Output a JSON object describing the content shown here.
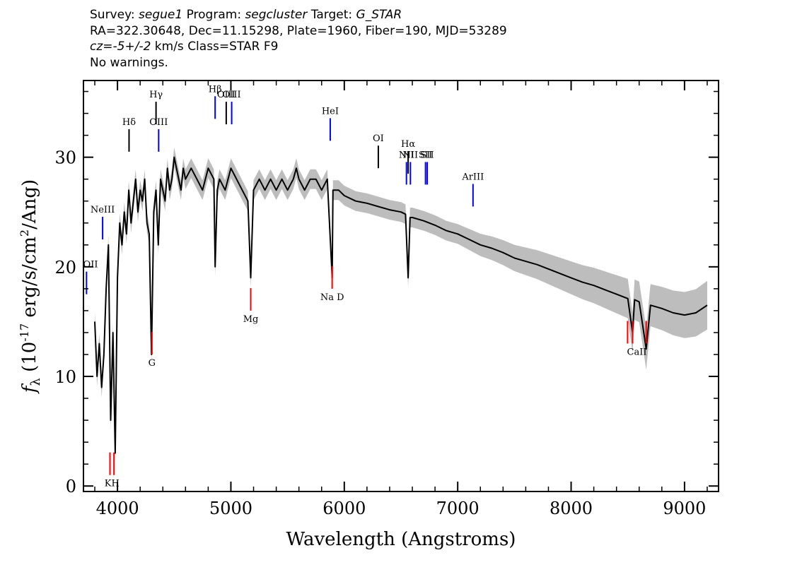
{
  "header": {
    "line1": {
      "survey_label": "Survey: ",
      "survey": "segue1",
      "program_label": " Program: ",
      "program": "segcluster",
      "target_label": " Target: ",
      "target": "G_STAR"
    },
    "line2": "RA=322.30648, Dec=11.15298, Plate=1960, Fiber=190, MJD=53289",
    "line3": {
      "cz_label": "cz=",
      "cz_value": "-5+/-2",
      "cz_rest": " km/s Class=STAR F9"
    },
    "line4": "No warnings."
  },
  "colors": {
    "flux": "#000000",
    "error_band": "#bdbdbd",
    "emission": "#0000ff",
    "absorption": "#ff0000",
    "sky_lines": "#000000"
  },
  "chart_data": {
    "type": "line",
    "xlabel": "Wavelength (Angstroms)",
    "ylabel_parts": {
      "f": "f",
      "sub": "λ",
      "mid": " (10",
      "exp": "-17",
      "rest": " erg/s/cm",
      "exp2": "2",
      "end": "/Ang)"
    },
    "xlim": [
      3700,
      9300
    ],
    "ylim": [
      -0.5,
      37
    ],
    "xticks": [
      4000,
      5000,
      6000,
      7000,
      8000,
      9000
    ],
    "yticks": [
      0,
      10,
      20,
      30
    ],
    "grid": false,
    "series": [
      {
        "values_note": "",
        "x": [
          3800,
          3820,
          3840,
          3860,
          3880,
          3900,
          3920,
          3940,
          3960,
          3980,
          4000,
          4020,
          4040,
          4060,
          4080,
          4100,
          4120,
          4140,
          4160,
          4180,
          4200,
          4220,
          4240,
          4260,
          4280,
          4300,
          4320,
          4340,
          4360,
          4380,
          4400,
          4420,
          4440,
          4460,
          4480,
          4500,
          4520,
          4540,
          4560,
          4580,
          4600,
          4650,
          4700,
          4750,
          4800,
          4850,
          4861,
          4880,
          4900,
          4950,
          5000,
          5050,
          5100,
          5150,
          5175,
          5200,
          5250,
          5300,
          5350,
          5400,
          5450,
          5500,
          5550,
          5577,
          5600,
          5650,
          5700,
          5750,
          5800,
          5850,
          5893,
          5900,
          5950,
          6000,
          6100,
          6200,
          6300,
          6400,
          6500,
          6540,
          6563,
          6580,
          6600,
          6700,
          6800,
          6900,
          7000,
          7100,
          7200,
          7300,
          7400,
          7500,
          7600,
          7700,
          7800,
          7900,
          8000,
          8100,
          8200,
          8300,
          8400,
          8500,
          8542,
          8560,
          8600,
          8662,
          8700,
          8800,
          8900,
          9000,
          9100,
          9200
        ],
        "y": [
          15,
          10,
          13,
          9,
          12,
          18,
          22,
          6,
          14,
          3,
          19,
          24,
          22,
          25,
          23,
          27,
          24,
          26,
          28,
          25,
          27,
          26,
          28,
          24,
          23,
          12,
          25,
          27,
          22,
          28,
          27,
          26,
          29,
          27,
          28,
          30,
          29,
          28,
          27,
          29,
          28,
          29,
          28,
          27,
          29,
          28,
          20,
          27,
          28,
          27,
          29,
          28,
          27,
          26,
          19,
          27,
          28,
          27,
          28,
          27,
          28,
          27,
          28,
          29,
          28,
          27,
          28,
          28,
          27,
          28,
          19,
          27,
          27,
          26.5,
          26,
          25.8,
          25.5,
          25.2,
          25,
          24.8,
          19,
          24.5,
          24.5,
          24.2,
          23.8,
          23.3,
          23,
          22.5,
          22,
          21.7,
          21.3,
          20.8,
          20.5,
          20.2,
          19.8,
          19.4,
          19,
          18.6,
          18.3,
          17.9,
          17.5,
          17.1,
          14,
          17,
          16.8,
          12.5,
          16.5,
          16.2,
          15.8,
          15.6,
          15.8,
          16.5
        ]
      }
    ],
    "emission_lines": [
      {
        "label": "OII",
        "x": 3727,
        "y": 17.5,
        "color": "#0000ff"
      },
      {
        "label": "NeIII",
        "x": 3869,
        "y": 22.5,
        "color": "#0000ff"
      },
      {
        "label": "Hδ",
        "x": 4102,
        "y": 30.5,
        "color": "#000000"
      },
      {
        "label": "Hγ",
        "x": 4340,
        "y": 33,
        "color": "#000000"
      },
      {
        "label": "OIII",
        "x": 4363,
        "y": 30.5,
        "color": "#0000ff"
      },
      {
        "label": "Hβ",
        "x": 4861,
        "y": 33.5,
        "color": "#0000ff"
      },
      {
        "label": "OIII",
        "x": 4959,
        "y": 33,
        "color": "#000000"
      },
      {
        "label": "OIII",
        "x": 5007,
        "y": 33,
        "color": "#0000ff"
      },
      {
        "label": "HeI",
        "x": 5876,
        "y": 31.5,
        "color": "#0000ff"
      },
      {
        "label": "OI",
        "x": 6300,
        "y": 29,
        "color": "#000000"
      },
      {
        "label": "NII",
        "x": 6548,
        "y": 27.5,
        "color": "#0000ff"
      },
      {
        "label": "Hα",
        "x": 6563,
        "y": 28.5,
        "color": "#000000"
      },
      {
        "label": "NII",
        "x": 6583,
        "y": 27.5,
        "color": "#0000ff"
      },
      {
        "label": "SII",
        "x": 6716,
        "y": 27.5,
        "color": "#0000ff"
      },
      {
        "label": "SII",
        "x": 6731,
        "y": 27.5,
        "color": "#0000ff"
      },
      {
        "label": "ArIII",
        "x": 7135,
        "y": 25.5,
        "color": "#0000ff"
      }
    ],
    "absorption_lines": [
      {
        "label": "KH",
        "x": 3934,
        "y": 1,
        "color": "#ff0000"
      },
      {
        "label": "KH",
        "x": 3969,
        "y": 1,
        "color": "#ff0000"
      },
      {
        "label": "G",
        "x": 4304,
        "y": 12,
        "color": "#ff0000"
      },
      {
        "label": "Mg",
        "x": 5175,
        "y": 16,
        "color": "#ff0000"
      },
      {
        "label": "Na D",
        "x": 5893,
        "y": 18,
        "color": "#ff0000"
      },
      {
        "label": "CaII",
        "x": 8498,
        "y": 13,
        "color": "#ff0000"
      },
      {
        "label": "CaII",
        "x": 8542,
        "y": 13,
        "color": "#ff0000"
      },
      {
        "label": "CaII",
        "x": 8662,
        "y": 13,
        "color": "#ff0000"
      }
    ]
  }
}
